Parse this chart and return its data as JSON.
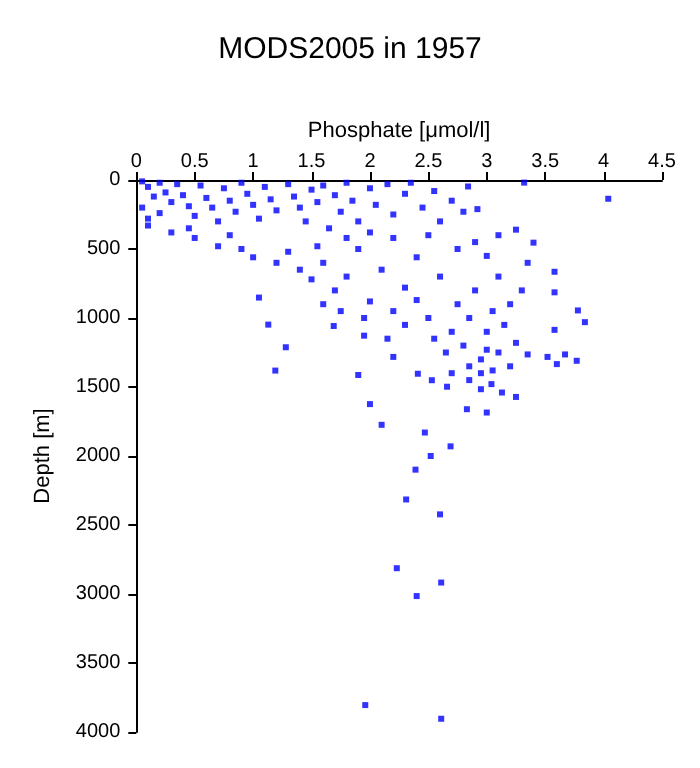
{
  "chart_data": {
    "type": "scatter",
    "title": "MODS2005 in 1957",
    "xlabel": "Phosphate [μmol/l]",
    "ylabel": "Depth [m]",
    "xlim": [
      0,
      4.5
    ],
    "xticks": [
      0,
      0.5,
      1,
      1.5,
      2,
      2.5,
      3,
      3.5,
      4,
      4.5
    ],
    "ylim": [
      4000,
      0
    ],
    "yticks": [
      0,
      500,
      1000,
      1500,
      2000,
      2500,
      3000,
      3500,
      4000
    ],
    "marker": "square",
    "series": [
      {
        "color": "#0000ff",
        "x": [
          0.05,
          0.1,
          0.15,
          0.05,
          0.1,
          0.2,
          0.25,
          0.3,
          0.2,
          0.35,
          0.4,
          0.45,
          0.5,
          0.55,
          0.6,
          0.65,
          0.7,
          0.75,
          0.8,
          0.85,
          0.9,
          0.95,
          1.0,
          1.05,
          1.1,
          1.15,
          1.2,
          1.3,
          1.35,
          1.4,
          1.45,
          1.5,
          1.55,
          1.6,
          1.7,
          1.75,
          1.8,
          1.85,
          1.9,
          2.0,
          2.05,
          2.15,
          2.2,
          2.3,
          2.35,
          2.45,
          2.55,
          2.6,
          2.7,
          2.8,
          0.1,
          0.3,
          0.5,
          0.7,
          0.9,
          0.45,
          1.0,
          1.2,
          1.3,
          0.8,
          1.4,
          1.5,
          1.6,
          1.7,
          1.8,
          1.9,
          2.0,
          2.1,
          2.2,
          2.3,
          2.4,
          2.5,
          2.4,
          2.6,
          2.7,
          2.75,
          2.8,
          2.85,
          2.9,
          2.95,
          3.0,
          3.05,
          3.1,
          3.1,
          3.15,
          3.2,
          3.25,
          2.95,
          2.85,
          3.0,
          2.65,
          2.55,
          2.3,
          2.15,
          1.95,
          1.75,
          1.6,
          3.3,
          3.35,
          3.0,
          2.9,
          3.1,
          2.75,
          2.5,
          2.2,
          2.0,
          1.8,
          1.65,
          1.55,
          3.2,
          3.05,
          2.7,
          2.85,
          4.04,
          3.32,
          2.84,
          2.92,
          3.25,
          3.4,
          3.58,
          3.58,
          3.78,
          3.84,
          3.58,
          3.67,
          3.77,
          3.6,
          3.25,
          3.0,
          2.83,
          2.0,
          2.1,
          1.9,
          1.28,
          1.19,
          1.13,
          1.05,
          1.69,
          1.95,
          2.2,
          2.41,
          2.53,
          2.66,
          2.95,
          3.13,
          3.04,
          3.52,
          3.35,
          2.47,
          2.69,
          2.52,
          2.39,
          2.31,
          2.6,
          2.23,
          2.61,
          2.4,
          1.96,
          2.61
        ],
        "values": [
          10,
          50,
          120,
          200,
          280,
          20,
          90,
          160,
          240,
          30,
          110,
          190,
          260,
          40,
          130,
          200,
          300,
          60,
          150,
          230,
          20,
          100,
          180,
          280,
          50,
          140,
          220,
          30,
          120,
          200,
          300,
          70,
          160,
          40,
          110,
          230,
          20,
          150,
          300,
          60,
          180,
          30,
          250,
          100,
          20,
          200,
          80,
          300,
          150,
          230,
          330,
          380,
          420,
          480,
          500,
          350,
          560,
          600,
          520,
          400,
          650,
          720,
          600,
          800,
          700,
          500,
          880,
          650,
          950,
          780,
          560,
          1000,
          870,
          700,
          1100,
          900,
          1200,
          1000,
          800,
          1300,
          1100,
          950,
          1250,
          700,
          1050,
          900,
          1180,
          1400,
          1350,
          1230,
          1250,
          1150,
          1050,
          1150,
          1000,
          950,
          900,
          800,
          600,
          550,
          450,
          400,
          500,
          400,
          420,
          380,
          420,
          350,
          480,
          1350,
          1380,
          1400,
          1450,
          136,
          19,
          47,
          211,
          360,
          454,
          665,
          814,
          945,
          1030,
          1086,
          1264,
          1310,
          1334,
          1572,
          1685,
          1661,
          1624,
          1774,
          1413,
          1212,
          1381,
          1048,
          852,
          1058,
          1128,
          1282,
          1404,
          1451,
          1498,
          1516,
          1540,
          1479,
          1282,
          1264,
          1830,
          1930,
          2000,
          2099,
          2315,
          2423,
          2813,
          2917,
          3015,
          3805,
          3904
        ]
      }
    ]
  }
}
